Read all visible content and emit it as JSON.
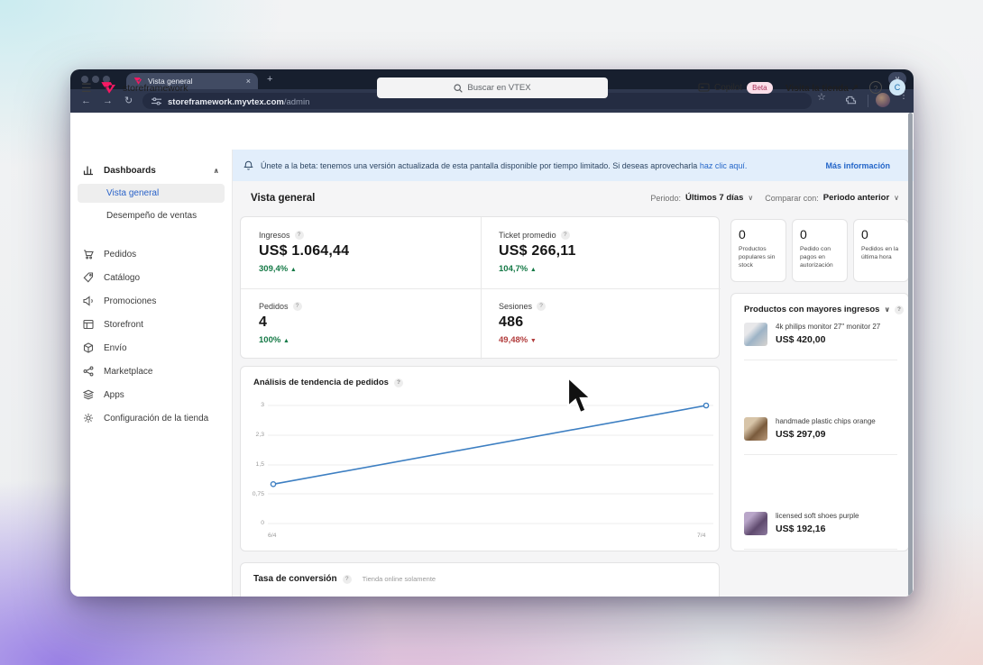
{
  "browser": {
    "tab_title": "Vista general",
    "url_host": "storeframework.myvtex.com",
    "url_path": "/admin",
    "icons": {
      "back": "←",
      "forward": "→",
      "reload": "↻",
      "star": "☆",
      "more": "⋮",
      "new_tab": "+",
      "close_tab": "×",
      "window_chevron": "∨"
    }
  },
  "header": {
    "account": "storeframework",
    "search_placeholder": "Buscar en VTEX",
    "copilot_label": "Copilot",
    "copilot_badge": "Beta",
    "visit_store": "Visita la tienda ↗",
    "help_glyph": "?",
    "avatar_initial": "C",
    "hamburger_glyph": "☰"
  },
  "banner": {
    "text": "Únete a la beta: tenemos una versión actualizada de esta pantalla disponible por tiempo limitado. Si deseas aprovecharla",
    "link": "haz clic aquí.",
    "more_info": "Más información"
  },
  "sidebar": {
    "group": {
      "label": "Dashboards",
      "chevron": "∧"
    },
    "subitems": [
      {
        "label": "Vista general",
        "active": true
      },
      {
        "label": "Desempeño de ventas",
        "active": false
      }
    ],
    "items": [
      {
        "label": "Pedidos",
        "icon": "cart-icon"
      },
      {
        "label": "Catálogo",
        "icon": "tag-icon"
      },
      {
        "label": "Promociones",
        "icon": "megaphone-icon"
      },
      {
        "label": "Storefront",
        "icon": "storefront-icon"
      },
      {
        "label": "Envío",
        "icon": "box-icon"
      },
      {
        "label": "Marketplace",
        "icon": "share-network-icon"
      },
      {
        "label": "Apps",
        "icon": "stack-icon"
      },
      {
        "label": "Configuración de la tienda",
        "icon": "gear-icon"
      }
    ]
  },
  "page": {
    "title": "Vista general",
    "period_label": "Periodo:",
    "period_value": "Últimos 7 días",
    "compare_label": "Comparar con:",
    "compare_value": "Periodo anterior",
    "chevron": "∨"
  },
  "metrics": [
    {
      "label": "Ingresos",
      "value": "US$ 1.064,44",
      "delta": "309,4%",
      "direction": "up",
      "arrow": "▲"
    },
    {
      "label": "Ticket promedio",
      "value": "US$ 266,11",
      "delta": "104,7%",
      "direction": "up",
      "arrow": "▲"
    },
    {
      "label": "Pedidos",
      "value": "4",
      "delta": "100%",
      "direction": "up",
      "arrow": "▲"
    },
    {
      "label": "Sesiones",
      "value": "486",
      "delta": "49,48%",
      "direction": "down",
      "arrow": "▼"
    }
  ],
  "alerts": [
    {
      "value": "0",
      "caption": "Productos populares sin stock"
    },
    {
      "value": "0",
      "caption": "Pedido con pagos en autorización"
    },
    {
      "value": "0",
      "caption": "Pedidos en la última hora"
    }
  ],
  "top_products": {
    "title": "Productos con mayores ingresos",
    "chevron": "∨",
    "items": [
      {
        "name": "4k philips monitor 27\" monitor 27",
        "price": "US$ 420,00"
      },
      {
        "name": "handmade plastic chips orange",
        "price": "US$ 297,09"
      },
      {
        "name": "licensed soft shoes purple",
        "price": "US$ 192,16"
      }
    ]
  },
  "chart_data": {
    "type": "line",
    "title": "Análisis de tendencia de pedidos",
    "x": [
      "6/4",
      "7/4"
    ],
    "values": [
      1,
      3
    ],
    "y_ticks": [
      "3",
      "2,3",
      "1,5",
      "0,75",
      "0"
    ],
    "y_tick_values": [
      3,
      2.3,
      1.5,
      0.75,
      0
    ],
    "ylim": [
      0,
      3
    ],
    "xlabel": "",
    "ylabel": "",
    "grid": true,
    "legend": false,
    "line_color": "#3d7fc2"
  },
  "conversion": {
    "title": "Tasa de conversión",
    "note": "Tienda online solamente"
  },
  "colors": {
    "brand_pink": "#f71963",
    "accent_blue": "#2a63c9",
    "positive_green": "#167a47",
    "negative_red": "#b23d3d",
    "banner_bg": "#e2eefb"
  }
}
